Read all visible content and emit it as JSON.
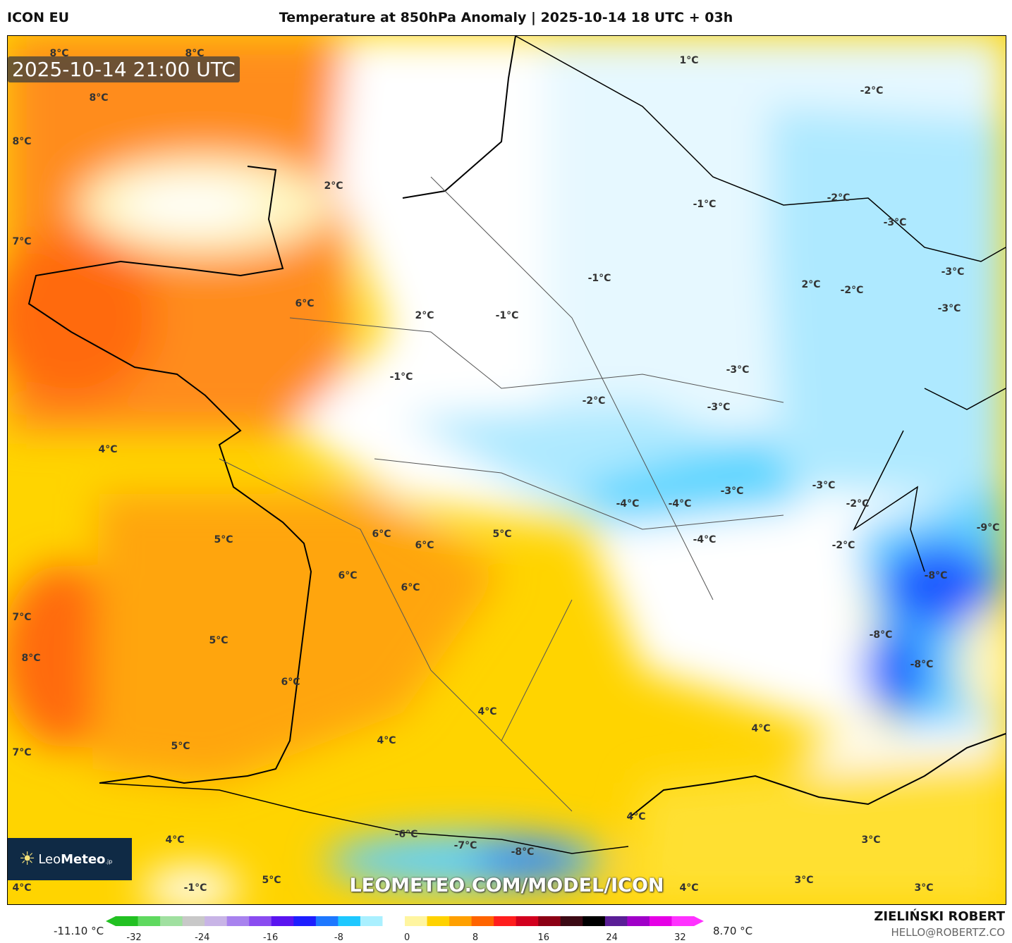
{
  "header": {
    "model": "ICON EU",
    "title": "Temperature at 850hPa Anomaly | 2025-10-14 18 UTC + 03h"
  },
  "map": {
    "valid_time": "2025-10-14 21:00 UTC",
    "watermark_url": "LEOMETEO.COM/MODEL/ICON",
    "logo": {
      "prefix": "Leo",
      "bold": "Meteo",
      "suffix": ".jp"
    },
    "labels": [
      "8°C",
      "8°C",
      "8°C",
      "8°C",
      "7°C",
      "1°C",
      "-2°C",
      "2°C",
      "-1°C",
      "-2°C",
      "-3°C",
      "-3°C",
      "6°C",
      "-1°C",
      "2°C",
      "-2°C",
      "-3°C",
      "2°C",
      "-1°C",
      "-3°C",
      "-1°C",
      "-2°C",
      "-3°C",
      "4°C",
      "-3°C",
      "-3°C",
      "-4°C",
      "-4°C",
      "-2°C",
      "-9°C",
      "5°C",
      "6°C",
      "6°C",
      "5°C",
      "-4°C",
      "-2°C",
      "-8°C",
      "6°C",
      "6°C",
      "7°C",
      "-8°C",
      "5°C",
      "8°C",
      "-8°C",
      "6°C",
      "4°C",
      "4°C",
      "4°C",
      "5°C",
      "7°C",
      "4°C",
      "3°C",
      "4°C",
      "-6°C",
      "-7°C",
      "-8°C",
      "4°C",
      "-1°C",
      "5°C",
      "3°C",
      "4°C",
      "3°C"
    ]
  },
  "colorbar": {
    "min_label": "-11.10 °C",
    "max_label": "8.70 °C",
    "ticks": [
      "-32",
      "-24",
      "-16",
      "-8",
      "0",
      "8",
      "16",
      "24",
      "32"
    ],
    "colors": [
      "#22c122",
      "#5fd95f",
      "#a0e0a0",
      "#c8c8c8",
      "#c8b4e6",
      "#a882ee",
      "#8a4cf0",
      "#5a14f0",
      "#1e1eff",
      "#1e78ff",
      "#1ec8ff",
      "#aaf0ff",
      "#ffffff",
      "#fff5a0",
      "#ffd200",
      "#ffa000",
      "#ff6400",
      "#ff1e1e",
      "#d2001e",
      "#8c0014",
      "#3c0a14",
      "#000000",
      "#5a1e96",
      "#a000c8",
      "#e600e6",
      "#ff32ff"
    ]
  },
  "footer": {
    "author": "ZIELIŃSKI ROBERT",
    "email": "HELLO@ROBERTZ.CO"
  }
}
